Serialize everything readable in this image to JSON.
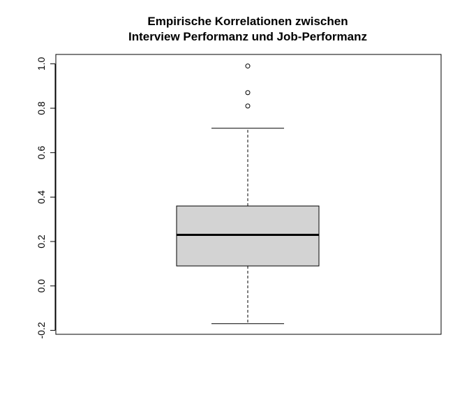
{
  "chart_data": {
    "type": "boxplot",
    "title_line1": "Empirische Korrelationen zwischen",
    "title_line2": "Interview Performanz und Job-Performanz",
    "xlabel": "",
    "ylabel": "",
    "ylim": [
      -0.2,
      1.0
    ],
    "yticks": [
      "-0.2",
      "0.0",
      "0.2",
      "0.4",
      "0.6",
      "0.8",
      "1.0"
    ],
    "grid": false,
    "box": {
      "whisker_low": -0.17,
      "q1": 0.09,
      "median": 0.23,
      "q3": 0.36,
      "whisker_high": 0.71,
      "outliers": [
        0.81,
        0.87,
        0.99
      ]
    },
    "colors": {
      "box_fill": "#d3d3d3",
      "lines": "#000000"
    }
  }
}
